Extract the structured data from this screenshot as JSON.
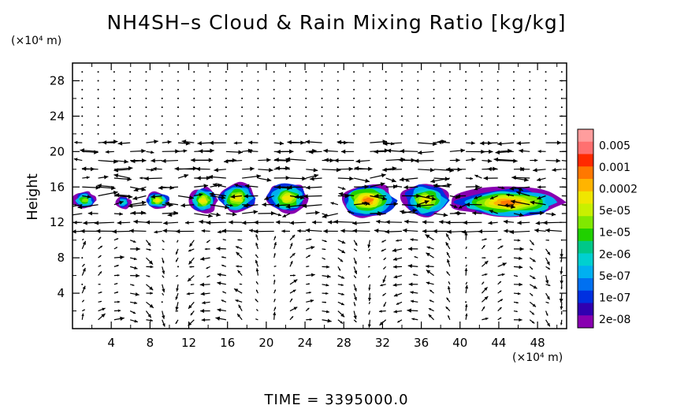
{
  "title": "NH4SH–s Cloud & Rain Mixing Ratio [kg/kg]",
  "y_unit": "(×10⁴ m)",
  "x_unit": "(×10⁴ m)",
  "time_label": "TIME  =  3395000.0",
  "chart_data": {
    "type": "heatmap",
    "title": "NH4SH–s Cloud & Rain Mixing Ratio [kg/kg]",
    "ylabel": "Height",
    "xlim": [
      0,
      51
    ],
    "ylim": [
      0,
      30
    ],
    "x_ticks": [
      4,
      8,
      12,
      16,
      20,
      24,
      28,
      32,
      36,
      40,
      44,
      48
    ],
    "y_ticks": [
      4,
      8,
      12,
      16,
      20,
      24,
      28
    ],
    "colorbar": {
      "labels": [
        "0.005",
        "0.001",
        "0.0002",
        "5e-05",
        "1e-05",
        "2e-06",
        "5e-07",
        "1e-07",
        "2e-08"
      ],
      "colors": [
        "#ff9d9d",
        "#ff7070",
        "#ff2a00",
        "#ff7800",
        "#ffb400",
        "#f0e600",
        "#c8f000",
        "#80e800",
        "#20d000",
        "#00c888",
        "#00d0d0",
        "#00b0f0",
        "#0070f0",
        "#0030e0",
        "#3000b0",
        "#8800b0"
      ]
    },
    "cloud_regions": [
      {
        "x": [
          0,
          2.5
        ],
        "y": [
          13.5,
          15.5
        ],
        "max_level": "1e-05"
      },
      {
        "x": [
          4.5,
          6
        ],
        "y": [
          13.5,
          15
        ],
        "max_level": "2e-06"
      },
      {
        "x": [
          7.5,
          10
        ],
        "y": [
          13.5,
          15.5
        ],
        "max_level": "5e-05"
      },
      {
        "x": [
          12,
          15
        ],
        "y": [
          13,
          16
        ],
        "max_level": "5e-05"
      },
      {
        "x": [
          15,
          19
        ],
        "y": [
          13,
          16.5
        ],
        "max_level": "5e-05"
      },
      {
        "x": [
          20,
          24.5
        ],
        "y": [
          13,
          16.5
        ],
        "max_level": "5e-05"
      },
      {
        "x": [
          27.5,
          33.5
        ],
        "y": [
          12.5,
          16.5
        ],
        "max_level": "0.0002"
      },
      {
        "x": [
          34,
          39
        ],
        "y": [
          12.5,
          16.5
        ],
        "max_level": "5e-05"
      },
      {
        "x": [
          39,
          51
        ],
        "y": [
          12.5,
          16
        ],
        "max_level": "0.0002"
      }
    ],
    "wind_vectors": "u/w wind field overlay on grid"
  }
}
